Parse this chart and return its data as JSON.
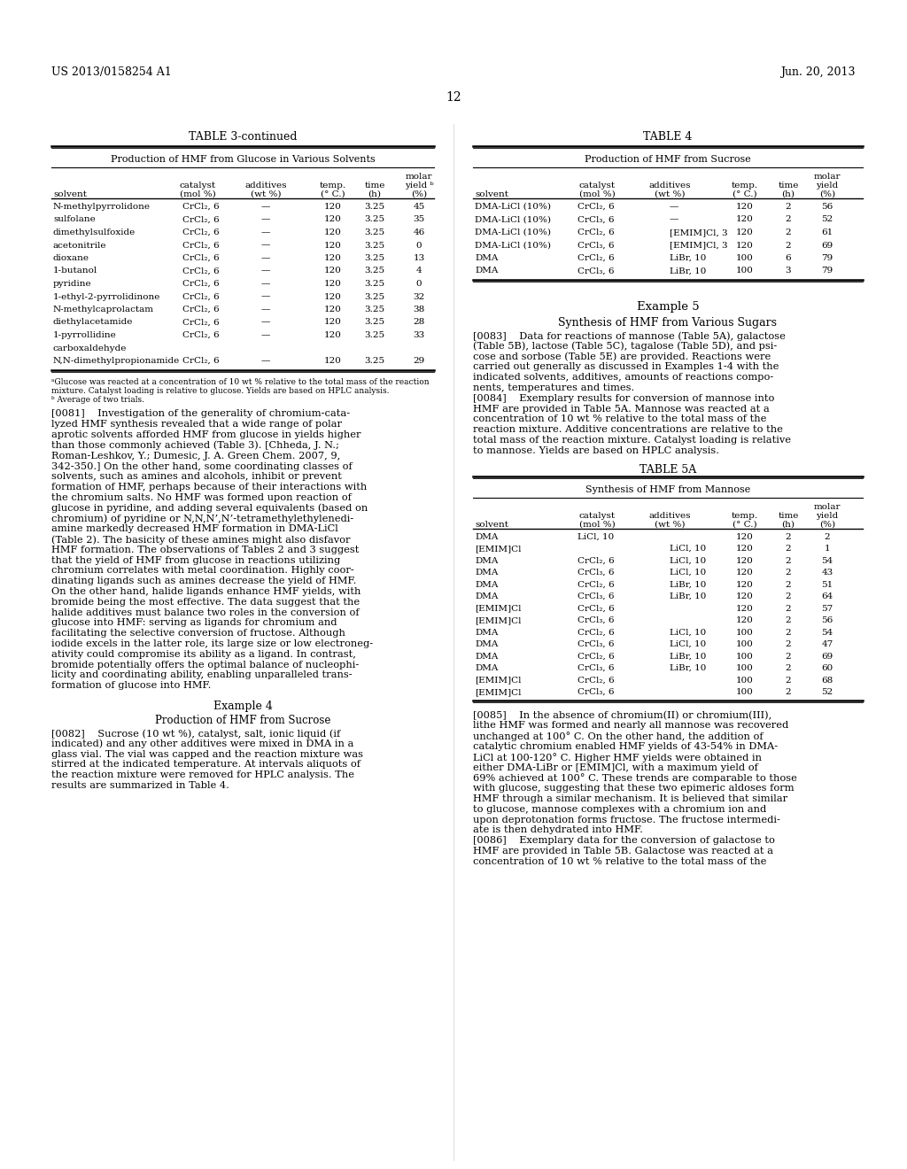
{
  "page_header_left": "US 2013/0158254 A1",
  "page_header_right": "Jun. 20, 2013",
  "page_number": "12",
  "bg_color": "#ffffff",
  "table3_title": "TABLE 3-continued",
  "table3_subtitle": "Production of HMF from Glucose in Various Solvents",
  "table3_rows": [
    [
      "N-methylpyrrolidone",
      "CrCl₂, 6",
      "—",
      "120",
      "3.25",
      "45"
    ],
    [
      "sulfolane",
      "CrCl₂, 6",
      "—",
      "120",
      "3.25",
      "35"
    ],
    [
      "dimethylsulfoxide",
      "CrCl₂, 6",
      "—",
      "120",
      "3.25",
      "46"
    ],
    [
      "acetonitrile",
      "CrCl₂, 6",
      "—",
      "120",
      "3.25",
      "0"
    ],
    [
      "dioxane",
      "CrCl₂, 6",
      "—",
      "120",
      "3.25",
      "13"
    ],
    [
      "1-butanol",
      "CrCl₂, 6",
      "—",
      "120",
      "3.25",
      "4"
    ],
    [
      "pyridine",
      "CrCl₂, 6",
      "—",
      "120",
      "3.25",
      "0"
    ],
    [
      "1-ethyl-2-pyrrolidinone",
      "CrCl₂, 6",
      "—",
      "120",
      "3.25",
      "32"
    ],
    [
      "N-methylcaprolactam",
      "CrCl₂, 6",
      "—",
      "120",
      "3.25",
      "38"
    ],
    [
      "diethylacetamide",
      "CrCl₂, 6",
      "—",
      "120",
      "3.25",
      "28"
    ],
    [
      "1-pyrrollidine\ncarboxaldehyde",
      "CrCl₂, 6",
      "—",
      "120",
      "3.25",
      "33"
    ],
    [
      "N,N-dimethylpropionamide",
      "CrCl₂, 6",
      "—",
      "120",
      "3.25",
      "29"
    ]
  ],
  "table3_footnote_a": "ᵃGlucose was reacted at a concentration of 10 wt % relative to the total mass of the reaction\nmixture. Catalyst loading is relative to glucose. Yields are based on HPLC analysis.",
  "table3_footnote_b": "ᵇ Average of two trials.",
  "table4_title": "TABLE 4",
  "table4_subtitle": "Production of HMF from Sucrose",
  "table4_rows": [
    [
      "DMA-LiCl (10%)",
      "CrCl₂, 6",
      "—",
      "120",
      "2",
      "56"
    ],
    [
      "DMA-LiCl (10%)",
      "CrCl₃, 6",
      "—",
      "120",
      "2",
      "52"
    ],
    [
      "DMA-LiCl (10%)",
      "CrCl₂, 6",
      "[EMIM]Cl, 3",
      "120",
      "2",
      "61"
    ],
    [
      "DMA-LiCl (10%)",
      "CrCl₃, 6",
      "[EMIM]Cl, 3",
      "120",
      "2",
      "69"
    ],
    [
      "DMA",
      "CrCl₂, 6",
      "LiBr, 10",
      "100",
      "6",
      "79"
    ],
    [
      "DMA",
      "CrCl₃, 6",
      "LiBr, 10",
      "100",
      "3",
      "79"
    ]
  ],
  "example5_title": "Example 5",
  "example5_subtitle": "Synthesis of HMF from Various Sugars",
  "table5a_title": "TABLE 5A",
  "table5a_subtitle": "Synthesis of HMF from Mannose",
  "table5a_rows": [
    [
      "DMA",
      "LiCl, 10",
      "",
      "120",
      "2",
      "2"
    ],
    [
      "[EMIM]Cl",
      "",
      "LiCl, 10",
      "120",
      "2",
      "1"
    ],
    [
      "DMA",
      "CrCl₂, 6",
      "LiCl, 10",
      "120",
      "2",
      "54"
    ],
    [
      "DMA",
      "CrCl₃, 6",
      "LiCl, 10",
      "120",
      "2",
      "43"
    ],
    [
      "DMA",
      "CrCl₂, 6",
      "LiBr, 10",
      "120",
      "2",
      "51"
    ],
    [
      "DMA",
      "CrCl₃, 6",
      "LiBr, 10",
      "120",
      "2",
      "64"
    ],
    [
      "[EMIM]Cl",
      "CrCl₂, 6",
      "",
      "120",
      "2",
      "57"
    ],
    [
      "[EMIM]Cl",
      "CrCl₃, 6",
      "",
      "120",
      "2",
      "56"
    ],
    [
      "DMA",
      "CrCl₂, 6",
      "LiCl, 10",
      "100",
      "2",
      "54"
    ],
    [
      "DMA",
      "CrCl₃, 6",
      "LiCl, 10",
      "100",
      "2",
      "47"
    ],
    [
      "DMA",
      "CrCl₂, 6",
      "LiBr, 10",
      "100",
      "2",
      "69"
    ],
    [
      "DMA",
      "CrCl₃, 6",
      "LiBr, 10",
      "100",
      "2",
      "60"
    ],
    [
      "[EMIM]Cl",
      "CrCl₂, 6",
      "",
      "100",
      "2",
      "68"
    ],
    [
      "[EMIM]Cl",
      "CrCl₃, 6",
      "",
      "100",
      "2",
      "52"
    ]
  ],
  "para_0081_lines": [
    "[0081]    Investigation of the generality of chromium-cata-",
    "lyzed HMF synthesis revealed that a wide range of polar",
    "aprotic solvents afforded HMF from glucose in yields higher",
    "than those commonly achieved (Table 3). [Chheda, J. N.;",
    "Roman-Leshkov, Y.; Dumesic, J. A. Green Chem. 2007, 9,",
    "342-350.] On the other hand, some coordinating classes of",
    "solvents, such as amines and alcohols, inhibit or prevent",
    "formation of HMF, perhaps because of their interactions with",
    "the chromium salts. No HMF was formed upon reaction of",
    "glucose in pyridine, and adding several equivalents (based on",
    "chromium) of pyridine or N,N,N’,N’-tetramethylethylenedi-",
    "amine markedly decreased HMF formation in DMA-LiCl",
    "(Table 2). The basicity of these amines might also disfavor",
    "HMF formation. The observations of Tables 2 and 3 suggest",
    "that the yield of HMF from glucose in reactions utilizing",
    "chromium correlates with metal coordination. Highly coor-",
    "dinating ligands such as amines decrease the yield of HMF.",
    "On the other hand, halide ligands enhance HMF yields, with",
    "bromide being the most effective. The data suggest that the",
    "halide additives must balance two roles in the conversion of",
    "glucose into HMF: serving as ligands for chromium and",
    "facilitating the selective conversion of fructose. Although",
    "iodide excels in the latter role, its large size or low electroneg-",
    "ativity could compromise its ability as a ligand. In contrast,",
    "bromide potentially offers the optimal balance of nucleophi-",
    "licity and coordinating ability, enabling unparalleled trans-",
    "formation of glucose into HMF."
  ],
  "para_0082_header": "Example 4",
  "para_0082_subheader": "Production of HMF from Sucrose",
  "para_0082_lines": [
    "[0082]    Sucrose (10 wt %), catalyst, salt, ionic liquid (if",
    "indicated) and any other additives were mixed in DMA in a",
    "glass vial. The vial was capped and the reaction mixture was",
    "stirred at the indicated temperature. At intervals aliquots of",
    "the reaction mixture were removed for HPLC analysis. The",
    "results are summarized in Table 4."
  ],
  "para_0083_lines": [
    "[0083]    Data for reactions of mannose (Table 5A), galactose",
    "(Table 5B), lactose (Table 5C), tagalose (Table 5D), and psi-",
    "cose and sorbose (Table 5E) are provided. Reactions were",
    "carried out generally as discussed in Examples 1-4 with the",
    "indicated solvents, additives, amounts of reactions compo-",
    "nents, temperatures and times."
  ],
  "para_0084_lines": [
    "[0084]    Exemplary results for conversion of mannose into",
    "HMF are provided in Table 5A. Mannose was reacted at a",
    "concentration of 10 wt % relative to the total mass of the",
    "reaction mixture. Additive concentrations are relative to the",
    "total mass of the reaction mixture. Catalyst loading is relative",
    "to mannose. Yields are based on HPLC analysis."
  ],
  "para_0085_lines": [
    "[0085]    In the absence of chromium(II) or chromium(III),",
    "lithe HMF was formed and nearly all mannose was recovered",
    "unchanged at 100° C. On the other hand, the addition of",
    "catalytic chromium enabled HMF yields of 43-54% in DMA-",
    "LiCl at 100-120° C. Higher HMF yields were obtained in",
    "either DMA-LiBr or [EMIM]Cl, with a maximum yield of",
    "69% achieved at 100° C. These trends are comparable to those",
    "with glucose, suggesting that these two epimeric aldoses form",
    "HMF through a similar mechanism. It is believed that similar",
    "to glucose, mannose complexes with a chromium ion and",
    "upon deprotonation forms fructose. The fructose intermedi-",
    "ate is then dehydrated into HMF."
  ],
  "para_0086_lines": [
    "[0086]    Exemplary data for the conversion of galactose to",
    "HMF are provided in Table 5B. Galactose was reacted at a",
    "concentration of 10 wt % relative to the total mass of the"
  ]
}
